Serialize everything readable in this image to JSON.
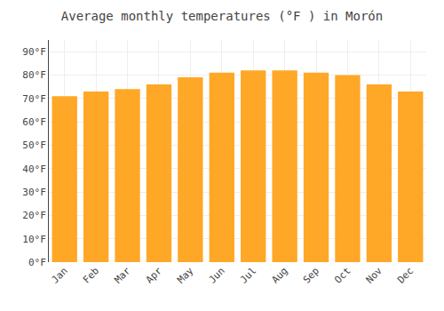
{
  "chart_data": {
    "type": "bar",
    "title": "Average monthly temperatures (°F ) in Morón",
    "categories": [
      "Jan",
      "Feb",
      "Mar",
      "Apr",
      "May",
      "Jun",
      "Jul",
      "Aug",
      "Sep",
      "Oct",
      "Nov",
      "Dec"
    ],
    "values": [
      71,
      73,
      74,
      76,
      79,
      81,
      82,
      82,
      81,
      80,
      76,
      73
    ],
    "color": "#FFA726",
    "ylim": [
      0,
      95
    ],
    "yticks": [
      {
        "value": 0,
        "label": "0°F"
      },
      {
        "value": 10,
        "label": "10°F"
      },
      {
        "value": 20,
        "label": "20°F"
      },
      {
        "value": 30,
        "label": "30°F"
      },
      {
        "value": 40,
        "label": "40°F"
      },
      {
        "value": 50,
        "label": "50°F"
      },
      {
        "value": 60,
        "label": "60°F"
      },
      {
        "value": 70,
        "label": "70°F"
      },
      {
        "value": 80,
        "label": "80°F"
      },
      {
        "value": 90,
        "label": "90°F"
      }
    ],
    "grid": true
  }
}
